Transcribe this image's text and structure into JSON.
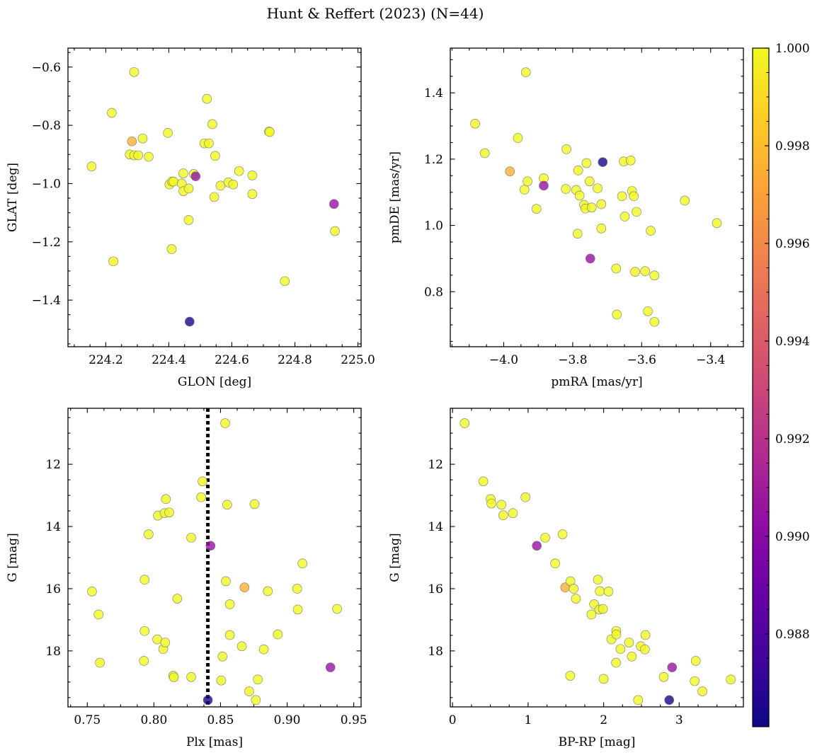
{
  "title": "Hunt & Reffert (2023) (N=44)",
  "colorbar": {
    "colormap": "plasma",
    "vmin": 0.9861,
    "vmax": 1.0,
    "ticks": [
      0.988,
      0.99,
      0.992,
      0.994,
      0.996,
      0.998,
      1.0
    ],
    "tick_labels": [
      "0.988",
      "0.990",
      "0.992",
      "0.994",
      "0.996",
      "0.998",
      "1.000"
    ]
  },
  "chart_data": [
    {
      "type": "scatter",
      "panel": "top-left",
      "xlabel": "GLON [deg]",
      "ylabel": "GLAT [deg]",
      "xlim": [
        224.08,
        225.01
      ],
      "ylim": [
        -1.56,
        -0.535
      ],
      "xticks": [
        224.2,
        224.4,
        224.6,
        224.8,
        225.0
      ],
      "xtick_labels": [
        "224.2",
        "224.4",
        "224.6",
        "224.8",
        "225.0"
      ],
      "yticks": [
        -1.4,
        -1.2,
        -1.0,
        -0.8,
        -0.6
      ],
      "ytick_labels": [
        "−1.4",
        "−1.2",
        "−1.0",
        "−0.8",
        "−0.6"
      ],
      "points": [
        {
          "x": 224.155,
          "y": -0.941,
          "c": 1.0
        },
        {
          "x": 224.219,
          "y": -0.757,
          "c": 1.0
        },
        {
          "x": 224.224,
          "y": -1.267,
          "c": 1.0
        },
        {
          "x": 224.29,
          "y": -0.617,
          "c": 1.0
        },
        {
          "x": 224.283,
          "y": -0.855,
          "c": 0.9975
        },
        {
          "x": 224.276,
          "y": -0.9,
          "c": 1.0
        },
        {
          "x": 224.29,
          "y": -0.903,
          "c": 1.0
        },
        {
          "x": 224.303,
          "y": -0.903,
          "c": 1.0
        },
        {
          "x": 224.317,
          "y": -0.845,
          "c": 1.0
        },
        {
          "x": 224.336,
          "y": -0.908,
          "c": 1.0
        },
        {
          "x": 224.397,
          "y": -0.826,
          "c": 1.0
        },
        {
          "x": 224.402,
          "y": -1.003,
          "c": 1.0
        },
        {
          "x": 224.41,
          "y": -0.993,
          "c": 1.0
        },
        {
          "x": 224.415,
          "y": -0.993,
          "c": 1.0
        },
        {
          "x": 224.409,
          "y": -1.225,
          "c": 1.0
        },
        {
          "x": 224.441,
          "y": -1.0,
          "c": 1.0
        },
        {
          "x": 224.446,
          "y": -1.026,
          "c": 1.0
        },
        {
          "x": 224.446,
          "y": -0.965,
          "c": 1.0
        },
        {
          "x": 224.463,
          "y": -1.017,
          "c": 1.0
        },
        {
          "x": 224.463,
          "y": -1.125,
          "c": 1.0
        },
        {
          "x": 224.466,
          "y": -1.474,
          "c": 0.9863
        },
        {
          "x": 224.479,
          "y": -0.967,
          "c": 1.0
        },
        {
          "x": 224.485,
          "y": -0.975,
          "c": 0.9905
        },
        {
          "x": 224.513,
          "y": -0.862,
          "c": 1.0
        },
        {
          "x": 224.521,
          "y": -0.709,
          "c": 1.0
        },
        {
          "x": 224.527,
          "y": -0.862,
          "c": 1.0
        },
        {
          "x": 224.538,
          "y": -0.796,
          "c": 1.0
        },
        {
          "x": 224.544,
          "y": -1.046,
          "c": 1.0
        },
        {
          "x": 224.547,
          "y": -0.905,
          "c": 1.0
        },
        {
          "x": 224.564,
          "y": -1.007,
          "c": 1.0
        },
        {
          "x": 224.589,
          "y": -0.996,
          "c": 1.0
        },
        {
          "x": 224.604,
          "y": -1.003,
          "c": 1.0
        },
        {
          "x": 224.623,
          "y": -0.957,
          "c": 1.0
        },
        {
          "x": 224.665,
          "y": -0.972,
          "c": 1.0
        },
        {
          "x": 224.665,
          "y": -1.036,
          "c": 1.0
        },
        {
          "x": 224.718,
          "y": -0.821,
          "c": 1.0
        },
        {
          "x": 224.72,
          "y": -0.823,
          "c": 1.0
        },
        {
          "x": 224.768,
          "y": -1.335,
          "c": 1.0
        },
        {
          "x": 224.924,
          "y": -1.07,
          "c": 0.9905
        },
        {
          "x": 224.927,
          "y": -1.163,
          "c": 1.0
        }
      ]
    },
    {
      "type": "scatter",
      "panel": "top-right",
      "xlabel": "pmRA [mas/yr]",
      "ylabel": "pmDE [mas/yr]",
      "xlim": [
        -4.155,
        -3.305
      ],
      "ylim": [
        0.634,
        1.535
      ],
      "xticks": [
        -4.0,
        -3.8,
        -3.6,
        -3.4
      ],
      "xtick_labels": [
        "−4.0",
        "−3.8",
        "−3.6",
        "−3.4"
      ],
      "yticks": [
        0.8,
        1.0,
        1.2,
        1.4
      ],
      "ytick_labels": [
        "0.8",
        "1.0",
        "1.2",
        "1.4"
      ],
      "points": [
        {
          "x": -4.083,
          "y": 1.307,
          "c": 1.0
        },
        {
          "x": -4.055,
          "y": 1.218,
          "c": 1.0
        },
        {
          "x": -3.982,
          "y": 1.163,
          "c": 0.9975
        },
        {
          "x": -3.959,
          "y": 1.264,
          "c": 1.0
        },
        {
          "x": -3.936,
          "y": 1.462,
          "c": 1.0
        },
        {
          "x": -3.94,
          "y": 1.108,
          "c": 1.0
        },
        {
          "x": -3.931,
          "y": 1.133,
          "c": 1.0
        },
        {
          "x": -3.905,
          "y": 1.05,
          "c": 1.0
        },
        {
          "x": -3.884,
          "y": 1.142,
          "c": 1.0
        },
        {
          "x": -3.884,
          "y": 1.12,
          "c": 0.9905
        },
        {
          "x": -3.818,
          "y": 1.23,
          "c": 1.0
        },
        {
          "x": -3.82,
          "y": 1.11,
          "c": 1.0
        },
        {
          "x": -3.79,
          "y": 1.107,
          "c": 1.0
        },
        {
          "x": -3.786,
          "y": 0.975,
          "c": 1.0
        },
        {
          "x": -3.784,
          "y": 1.166,
          "c": 1.0
        },
        {
          "x": -3.78,
          "y": 1.09,
          "c": 1.0
        },
        {
          "x": -3.767,
          "y": 1.062,
          "c": 1.0
        },
        {
          "x": -3.763,
          "y": 1.051,
          "c": 1.0
        },
        {
          "x": -3.76,
          "y": 1.188,
          "c": 1.0
        },
        {
          "x": -3.751,
          "y": 1.133,
          "c": 1.0
        },
        {
          "x": -3.749,
          "y": 0.9,
          "c": 0.9905
        },
        {
          "x": -3.745,
          "y": 1.054,
          "c": 1.0
        },
        {
          "x": -3.728,
          "y": 1.112,
          "c": 1.0
        },
        {
          "x": -3.717,
          "y": 1.064,
          "c": 1.0
        },
        {
          "x": -3.717,
          "y": 0.991,
          "c": 1.0
        },
        {
          "x": -3.713,
          "y": 1.191,
          "c": 0.9863
        },
        {
          "x": -3.674,
          "y": 0.87,
          "c": 1.0
        },
        {
          "x": -3.672,
          "y": 0.731,
          "c": 1.0
        },
        {
          "x": -3.657,
          "y": 1.088,
          "c": 1.0
        },
        {
          "x": -3.652,
          "y": 1.193,
          "c": 1.0
        },
        {
          "x": -3.649,
          "y": 1.027,
          "c": 1.0
        },
        {
          "x": -3.632,
          "y": 1.196,
          "c": 1.0
        },
        {
          "x": -3.628,
          "y": 1.104,
          "c": 1.0
        },
        {
          "x": -3.623,
          "y": 1.088,
          "c": 1.0
        },
        {
          "x": -3.619,
          "y": 0.86,
          "c": 1.0
        },
        {
          "x": -3.615,
          "y": 1.041,
          "c": 1.0
        },
        {
          "x": -3.59,
          "y": 0.862,
          "c": 1.0
        },
        {
          "x": -3.582,
          "y": 0.741,
          "c": 1.0
        },
        {
          "x": -3.574,
          "y": 0.984,
          "c": 1.0
        },
        {
          "x": -3.563,
          "y": 0.849,
          "c": 1.0
        },
        {
          "x": -3.563,
          "y": 0.709,
          "c": 1.0
        },
        {
          "x": -3.475,
          "y": 1.075,
          "c": 1.0
        },
        {
          "x": -3.382,
          "y": 1.007,
          "c": 1.0
        }
      ]
    },
    {
      "type": "scatter",
      "panel": "bottom-left",
      "xlabel": "Plx [mas]",
      "ylabel": "G [mag]",
      "xlim": [
        0.7355,
        0.9555
      ],
      "ylim": [
        19.8,
        10.2
      ],
      "xticks": [
        0.75,
        0.8,
        0.85,
        0.9,
        0.95
      ],
      "xtick_labels": [
        "0.75",
        "0.80",
        "0.85",
        "0.90",
        "0.95"
      ],
      "yticks": [
        12,
        14,
        16,
        18
      ],
      "ytick_labels": [
        "12",
        "14",
        "16",
        "18"
      ],
      "vline": {
        "x": 0.8405,
        "style": "dotted"
      },
      "points": [
        {
          "x": 0.7535,
          "y": 16.09,
          "c": 1.0
        },
        {
          "x": 0.7585,
          "y": 16.83,
          "c": 1.0
        },
        {
          "x": 0.7595,
          "y": 18.38,
          "c": 1.0
        },
        {
          "x": 0.793,
          "y": 15.71,
          "c": 1.0
        },
        {
          "x": 0.793,
          "y": 17.36,
          "c": 1.0
        },
        {
          "x": 0.7925,
          "y": 18.32,
          "c": 1.0
        },
        {
          "x": 0.796,
          "y": 14.25,
          "c": 1.0
        },
        {
          "x": 0.803,
          "y": 13.65,
          "c": 1.0
        },
        {
          "x": 0.8025,
          "y": 17.63,
          "c": 1.0
        },
        {
          "x": 0.807,
          "y": 17.94,
          "c": 1.0
        },
        {
          "x": 0.808,
          "y": 13.57,
          "c": 1.0
        },
        {
          "x": 0.809,
          "y": 13.12,
          "c": 1.0
        },
        {
          "x": 0.8085,
          "y": 17.73,
          "c": 1.0
        },
        {
          "x": 0.8115,
          "y": 13.55,
          "c": 1.0
        },
        {
          "x": 0.8145,
          "y": 18.8,
          "c": 1.0
        },
        {
          "x": 0.815,
          "y": 18.85,
          "c": 1.0
        },
        {
          "x": 0.8175,
          "y": 16.32,
          "c": 1.0
        },
        {
          "x": 0.828,
          "y": 14.36,
          "c": 1.0
        },
        {
          "x": 0.828,
          "y": 18.84,
          "c": 1.0
        },
        {
          "x": 0.8355,
          "y": 13.06,
          "c": 1.0
        },
        {
          "x": 0.8365,
          "y": 12.55,
          "c": 1.0
        },
        {
          "x": 0.8405,
          "y": 19.58,
          "c": 0.9863
        },
        {
          "x": 0.8425,
          "y": 14.62,
          "c": 0.9905
        },
        {
          "x": 0.8505,
          "y": 18.95,
          "c": 1.0
        },
        {
          "x": 0.8515,
          "y": 18.18,
          "c": 1.0
        },
        {
          "x": 0.8535,
          "y": 10.68,
          "c": 1.0
        },
        {
          "x": 0.854,
          "y": 15.76,
          "c": 1.0
        },
        {
          "x": 0.855,
          "y": 13.3,
          "c": 1.0
        },
        {
          "x": 0.857,
          "y": 16.5,
          "c": 1.0
        },
        {
          "x": 0.857,
          "y": 17.49,
          "c": 1.0
        },
        {
          "x": 0.866,
          "y": 17.85,
          "c": 1.0
        },
        {
          "x": 0.868,
          "y": 15.96,
          "c": 0.9975
        },
        {
          "x": 0.8715,
          "y": 19.3,
          "c": 1.0
        },
        {
          "x": 0.8755,
          "y": 13.28,
          "c": 1.0
        },
        {
          "x": 0.8765,
          "y": 19.58,
          "c": 1.0
        },
        {
          "x": 0.878,
          "y": 18.92,
          "c": 1.0
        },
        {
          "x": 0.8825,
          "y": 17.95,
          "c": 1.0
        },
        {
          "x": 0.8855,
          "y": 16.08,
          "c": 1.0
        },
        {
          "x": 0.893,
          "y": 17.47,
          "c": 1.0
        },
        {
          "x": 0.9075,
          "y": 16.0,
          "c": 1.0
        },
        {
          "x": 0.908,
          "y": 16.67,
          "c": 1.0
        },
        {
          "x": 0.9115,
          "y": 15.19,
          "c": 1.0
        },
        {
          "x": 0.9325,
          "y": 18.53,
          "c": 0.9905
        },
        {
          "x": 0.9375,
          "y": 16.65,
          "c": 1.0
        }
      ]
    },
    {
      "type": "scatter",
      "panel": "bottom-right",
      "xlabel": "BP-RP [mag]",
      "ylabel": "G [mag]",
      "xlim": [
        -0.03,
        3.85
      ],
      "ylim": [
        19.8,
        10.2
      ],
      "xticks": [
        0,
        1,
        2,
        3
      ],
      "xtick_labels": [
        "0",
        "1",
        "2",
        "3"
      ],
      "yticks": [
        12,
        14,
        16,
        18
      ],
      "ytick_labels": [
        "12",
        "14",
        "16",
        "18"
      ],
      "points": [
        {
          "x": 0.16,
          "y": 10.68,
          "c": 1.0
        },
        {
          "x": 0.407,
          "y": 12.55,
          "c": 1.0
        },
        {
          "x": 0.504,
          "y": 13.12,
          "c": 1.0
        },
        {
          "x": 0.514,
          "y": 13.26,
          "c": 1.0
        },
        {
          "x": 0.648,
          "y": 13.3,
          "c": 1.0
        },
        {
          "x": 0.671,
          "y": 13.64,
          "c": 1.0
        },
        {
          "x": 0.799,
          "y": 13.57,
          "c": 1.0
        },
        {
          "x": 0.965,
          "y": 13.06,
          "c": 1.0
        },
        {
          "x": 1.115,
          "y": 14.62,
          "c": 0.9905
        },
        {
          "x": 1.226,
          "y": 14.36,
          "c": 1.0
        },
        {
          "x": 1.358,
          "y": 15.19,
          "c": 1.0
        },
        {
          "x": 1.456,
          "y": 14.25,
          "c": 1.0
        },
        {
          "x": 1.491,
          "y": 15.96,
          "c": 0.9975
        },
        {
          "x": 1.56,
          "y": 15.76,
          "c": 1.0
        },
        {
          "x": 1.557,
          "y": 18.8,
          "c": 1.0
        },
        {
          "x": 1.603,
          "y": 16.0,
          "c": 1.0
        },
        {
          "x": 1.633,
          "y": 16.32,
          "c": 1.0
        },
        {
          "x": 1.838,
          "y": 16.83,
          "c": 1.0
        },
        {
          "x": 1.874,
          "y": 16.5,
          "c": 1.0
        },
        {
          "x": 1.924,
          "y": 15.71,
          "c": 1.0
        },
        {
          "x": 1.942,
          "y": 16.67,
          "c": 1.0
        },
        {
          "x": 1.949,
          "y": 16.08,
          "c": 1.0
        },
        {
          "x": 1.991,
          "y": 16.65,
          "c": 1.0
        },
        {
          "x": 2.0,
          "y": 18.9,
          "c": 1.0
        },
        {
          "x": 2.064,
          "y": 16.09,
          "c": 1.0
        },
        {
          "x": 2.102,
          "y": 17.63,
          "c": 1.0
        },
        {
          "x": 2.167,
          "y": 17.36,
          "c": 1.0
        },
        {
          "x": 2.167,
          "y": 17.47,
          "c": 1.0
        },
        {
          "x": 2.164,
          "y": 18.38,
          "c": 1.0
        },
        {
          "x": 2.223,
          "y": 17.94,
          "c": 1.0
        },
        {
          "x": 2.336,
          "y": 17.73,
          "c": 1.0
        },
        {
          "x": 2.373,
          "y": 18.18,
          "c": 1.0
        },
        {
          "x": 2.457,
          "y": 19.58,
          "c": 1.0
        },
        {
          "x": 2.491,
          "y": 17.85,
          "c": 1.0
        },
        {
          "x": 2.546,
          "y": 17.95,
          "c": 1.0
        },
        {
          "x": 2.553,
          "y": 17.49,
          "c": 1.0
        },
        {
          "x": 2.796,
          "y": 18.84,
          "c": 1.0
        },
        {
          "x": 2.868,
          "y": 19.58,
          "c": 0.9863
        },
        {
          "x": 2.906,
          "y": 18.53,
          "c": 0.9905
        },
        {
          "x": 3.219,
          "y": 18.32,
          "c": 1.0
        },
        {
          "x": 3.205,
          "y": 18.97,
          "c": 1.0
        },
        {
          "x": 3.307,
          "y": 19.3,
          "c": 1.0
        },
        {
          "x": 3.683,
          "y": 18.92,
          "c": 1.0
        }
      ]
    }
  ]
}
